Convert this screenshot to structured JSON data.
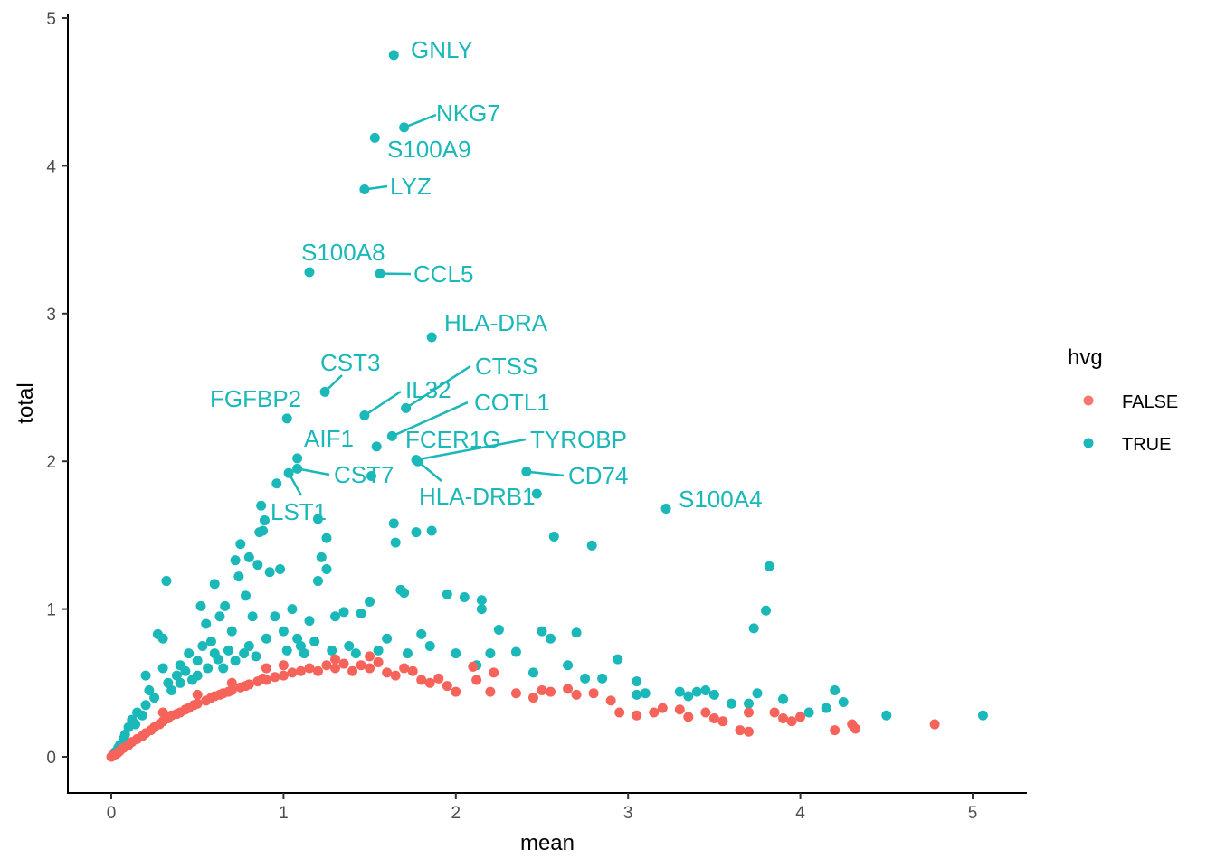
{
  "chart_data": {
    "type": "scatter",
    "xlabel": "mean",
    "ylabel": "total",
    "xlim": [
      -0.25,
      5.3
    ],
    "ylim": [
      -0.25,
      5.05
    ],
    "xticks": [
      "0",
      "1",
      "2",
      "3",
      "4",
      "5"
    ],
    "yticks": [
      "0",
      "1",
      "2",
      "3",
      "4",
      "5"
    ],
    "grid": false,
    "legend": {
      "title": "hvg",
      "placement": "right",
      "entries": [
        "FALSE",
        "TRUE"
      ]
    },
    "colors": {
      "FALSE": "#F8766D",
      "TRUE": "#00BFC4"
    },
    "series": [
      {
        "name": "TRUE",
        "points": [
          [
            0.02,
            0.03
          ],
          [
            0.04,
            0.06
          ],
          [
            0.05,
            0.08
          ],
          [
            0.07,
            0.12
          ],
          [
            0.08,
            0.15
          ],
          [
            0.1,
            0.2
          ],
          [
            0.12,
            0.25
          ],
          [
            0.14,
            0.22
          ],
          [
            0.15,
            0.3
          ],
          [
            0.18,
            0.28
          ],
          [
            0.2,
            0.35
          ],
          [
            0.2,
            0.55
          ],
          [
            0.22,
            0.45
          ],
          [
            0.25,
            0.4
          ],
          [
            0.27,
            0.83
          ],
          [
            0.3,
            0.8
          ],
          [
            0.3,
            0.6
          ],
          [
            0.32,
            1.19
          ],
          [
            0.33,
            0.5
          ],
          [
            0.35,
            0.45
          ],
          [
            0.38,
            0.55
          ],
          [
            0.4,
            0.5
          ],
          [
            0.4,
            0.62
          ],
          [
            0.43,
            0.58
          ],
          [
            0.45,
            0.7
          ],
          [
            0.47,
            0.52
          ],
          [
            0.5,
            0.55
          ],
          [
            0.5,
            0.65
          ],
          [
            0.52,
            1.02
          ],
          [
            0.53,
            0.75
          ],
          [
            0.55,
            0.9
          ],
          [
            0.56,
            0.6
          ],
          [
            0.58,
            0.78
          ],
          [
            0.6,
            1.17
          ],
          [
            0.6,
            0.7
          ],
          [
            0.62,
            0.66
          ],
          [
            0.63,
            0.95
          ],
          [
            0.65,
            0.6
          ],
          [
            0.66,
            1.02
          ],
          [
            0.68,
            0.72
          ],
          [
            0.7,
            0.85
          ],
          [
            0.72,
            1.33
          ],
          [
            0.72,
            0.65
          ],
          [
            0.74,
            1.22
          ],
          [
            0.75,
            1.44
          ],
          [
            0.77,
            0.7
          ],
          [
            0.78,
            1.09
          ],
          [
            0.8,
            0.75
          ],
          [
            0.8,
            1.35
          ],
          [
            0.82,
            0.95
          ],
          [
            0.84,
            0.68
          ],
          [
            0.85,
            1.3
          ],
          [
            0.86,
            1.52
          ],
          [
            0.87,
            1.7
          ],
          [
            0.88,
            1.53
          ],
          [
            0.89,
            1.6
          ],
          [
            0.9,
            0.8
          ],
          [
            0.92,
            1.25
          ],
          [
            0.95,
            0.95
          ],
          [
            0.96,
            1.85
          ],
          [
            0.98,
            1.27
          ],
          [
            1.0,
            0.85
          ],
          [
            1.02,
            0.72
          ],
          [
            1.05,
            1.0
          ],
          [
            1.08,
            0.8
          ],
          [
            1.1,
            0.75
          ],
          [
            1.12,
            0.7
          ],
          [
            1.15,
            0.92
          ],
          [
            1.18,
            0.78
          ],
          [
            1.2,
            1.19
          ],
          [
            1.2,
            1.61
          ],
          [
            1.22,
            1.35
          ],
          [
            1.25,
            1.48
          ],
          [
            1.25,
            1.27
          ],
          [
            1.28,
            0.72
          ],
          [
            1.3,
            0.95
          ],
          [
            1.35,
            0.98
          ],
          [
            1.38,
            0.75
          ],
          [
            1.42,
            0.7
          ],
          [
            1.45,
            0.97
          ],
          [
            1.5,
            1.05
          ],
          [
            1.51,
            1.9
          ],
          [
            1.55,
            0.72
          ],
          [
            1.6,
            0.8
          ],
          [
            1.64,
            1.58
          ],
          [
            1.65,
            1.45
          ],
          [
            1.68,
            1.13
          ],
          [
            1.7,
            1.11
          ],
          [
            1.72,
            0.7
          ],
          [
            1.77,
            1.52
          ],
          [
            1.8,
            0.83
          ],
          [
            1.85,
            0.75
          ],
          [
            1.86,
            1.53
          ],
          [
            1.95,
            1.1
          ],
          [
            2.0,
            0.7
          ],
          [
            2.05,
            1.08
          ],
          [
            2.12,
            0.62
          ],
          [
            2.15,
            1.0
          ],
          [
            2.15,
            1.06
          ],
          [
            2.2,
            0.7
          ],
          [
            2.25,
            0.86
          ],
          [
            2.35,
            0.71
          ],
          [
            2.45,
            0.57
          ],
          [
            2.47,
            1.78
          ],
          [
            2.5,
            0.85
          ],
          [
            2.55,
            0.8
          ],
          [
            2.57,
            1.49
          ],
          [
            2.65,
            0.62
          ],
          [
            2.7,
            0.84
          ],
          [
            2.75,
            0.53
          ],
          [
            2.79,
            1.43
          ],
          [
            2.85,
            0.53
          ],
          [
            2.94,
            0.66
          ],
          [
            3.05,
            0.51
          ],
          [
            3.05,
            0.42
          ],
          [
            3.1,
            0.43
          ],
          [
            3.3,
            0.44
          ],
          [
            3.35,
            0.41
          ],
          [
            3.4,
            0.44
          ],
          [
            3.45,
            0.45
          ],
          [
            3.5,
            0.42
          ],
          [
            3.6,
            0.36
          ],
          [
            3.7,
            0.36
          ],
          [
            3.73,
            0.87
          ],
          [
            3.75,
            0.43
          ],
          [
            3.8,
            0.99
          ],
          [
            3.82,
            1.29
          ],
          [
            3.9,
            0.39
          ],
          [
            4.05,
            0.3
          ],
          [
            4.15,
            0.33
          ],
          [
            4.2,
            0.45
          ],
          [
            4.25,
            0.37
          ],
          [
            4.5,
            0.28
          ],
          [
            5.06,
            0.28
          ]
        ]
      },
      {
        "name": "FALSE",
        "points": [
          [
            0.0,
            0.0
          ],
          [
            0.01,
            0.01
          ],
          [
            0.02,
            0.015
          ],
          [
            0.03,
            0.02
          ],
          [
            0.04,
            0.03
          ],
          [
            0.05,
            0.04
          ],
          [
            0.07,
            0.06
          ],
          [
            0.1,
            0.08
          ],
          [
            0.12,
            0.1
          ],
          [
            0.15,
            0.12
          ],
          [
            0.18,
            0.14
          ],
          [
            0.2,
            0.16
          ],
          [
            0.23,
            0.18
          ],
          [
            0.25,
            0.2
          ],
          [
            0.28,
            0.22
          ],
          [
            0.3,
            0.24
          ],
          [
            0.3,
            0.3
          ],
          [
            0.33,
            0.26
          ],
          [
            0.35,
            0.28
          ],
          [
            0.38,
            0.29
          ],
          [
            0.4,
            0.3
          ],
          [
            0.43,
            0.32
          ],
          [
            0.45,
            0.33
          ],
          [
            0.48,
            0.35
          ],
          [
            0.5,
            0.36
          ],
          [
            0.5,
            0.42
          ],
          [
            0.55,
            0.38
          ],
          [
            0.58,
            0.4
          ],
          [
            0.6,
            0.41
          ],
          [
            0.63,
            0.42
          ],
          [
            0.65,
            0.43
          ],
          [
            0.68,
            0.44
          ],
          [
            0.7,
            0.45
          ],
          [
            0.7,
            0.5
          ],
          [
            0.75,
            0.47
          ],
          [
            0.78,
            0.48
          ],
          [
            0.8,
            0.49
          ],
          [
            0.85,
            0.51
          ],
          [
            0.88,
            0.53
          ],
          [
            0.9,
            0.52
          ],
          [
            0.9,
            0.6
          ],
          [
            0.95,
            0.54
          ],
          [
            1.0,
            0.55
          ],
          [
            1.0,
            0.62
          ],
          [
            1.05,
            0.57
          ],
          [
            1.1,
            0.58
          ],
          [
            1.15,
            0.6
          ],
          [
            1.2,
            0.58
          ],
          [
            1.25,
            0.62
          ],
          [
            1.3,
            0.6
          ],
          [
            1.3,
            0.66
          ],
          [
            1.35,
            0.63
          ],
          [
            1.4,
            0.58
          ],
          [
            1.45,
            0.62
          ],
          [
            1.5,
            0.6
          ],
          [
            1.5,
            0.68
          ],
          [
            1.55,
            0.64
          ],
          [
            1.6,
            0.57
          ],
          [
            1.65,
            0.55
          ],
          [
            1.7,
            0.6
          ],
          [
            1.75,
            0.58
          ],
          [
            1.8,
            0.52
          ],
          [
            1.85,
            0.5
          ],
          [
            1.9,
            0.53
          ],
          [
            1.95,
            0.48
          ],
          [
            2.0,
            0.44
          ],
          [
            2.1,
            0.61
          ],
          [
            2.12,
            0.52
          ],
          [
            2.2,
            0.44
          ],
          [
            2.22,
            0.57
          ],
          [
            2.35,
            0.43
          ],
          [
            2.45,
            0.4
          ],
          [
            2.5,
            0.45
          ],
          [
            2.55,
            0.44
          ],
          [
            2.65,
            0.46
          ],
          [
            2.7,
            0.42
          ],
          [
            2.8,
            0.43
          ],
          [
            2.9,
            0.38
          ],
          [
            2.95,
            0.3
          ],
          [
            3.05,
            0.28
          ],
          [
            3.15,
            0.3
          ],
          [
            3.2,
            0.33
          ],
          [
            3.3,
            0.32
          ],
          [
            3.35,
            0.27
          ],
          [
            3.45,
            0.3
          ],
          [
            3.5,
            0.26
          ],
          [
            3.55,
            0.24
          ],
          [
            3.65,
            0.18
          ],
          [
            3.7,
            0.17
          ],
          [
            3.7,
            0.3
          ],
          [
            3.85,
            0.3
          ],
          [
            3.9,
            0.26
          ],
          [
            3.95,
            0.24
          ],
          [
            4.0,
            0.27
          ],
          [
            4.2,
            0.18
          ],
          [
            4.3,
            0.22
          ],
          [
            4.32,
            0.19
          ],
          [
            4.78,
            0.22
          ]
        ]
      }
    ],
    "labeled_points": [
      {
        "gene": "GNLY",
        "x": 1.64,
        "y": 4.75
      },
      {
        "gene": "NKG7",
        "x": 1.7,
        "y": 4.26
      },
      {
        "gene": "S100A9",
        "x": 1.53,
        "y": 4.19
      },
      {
        "gene": "LYZ",
        "x": 1.47,
        "y": 3.84
      },
      {
        "gene": "S100A8",
        "x": 1.15,
        "y": 3.28
      },
      {
        "gene": "CCL5",
        "x": 1.56,
        "y": 3.27
      },
      {
        "gene": "HLA-DRA",
        "x": 1.86,
        "y": 2.84
      },
      {
        "gene": "CST3",
        "x": 1.24,
        "y": 2.47
      },
      {
        "gene": "FGFBP2",
        "x": 1.02,
        "y": 2.29
      },
      {
        "gene": "IL32",
        "x": 1.47,
        "y": 2.31
      },
      {
        "gene": "CTSS",
        "x": 1.71,
        "y": 2.36
      },
      {
        "gene": "COTL1",
        "x": 1.63,
        "y": 2.17
      },
      {
        "gene": "AIF1",
        "x": 1.08,
        "y": 2.02
      },
      {
        "gene": "FCER1G",
        "x": 1.54,
        "y": 2.1
      },
      {
        "gene": "TYROBP",
        "x": 1.77,
        "y": 2.01
      },
      {
        "gene": "HLA-DRB1",
        "x": 1.78,
        "y": 2.0
      },
      {
        "gene": "CST7",
        "x": 1.08,
        "y": 1.95
      },
      {
        "gene": "LST1",
        "x": 1.03,
        "y": 1.92
      },
      {
        "gene": "CD74",
        "x": 2.41,
        "y": 1.93
      },
      {
        "gene": "S100A4",
        "x": 3.22,
        "y": 1.68
      }
    ]
  }
}
